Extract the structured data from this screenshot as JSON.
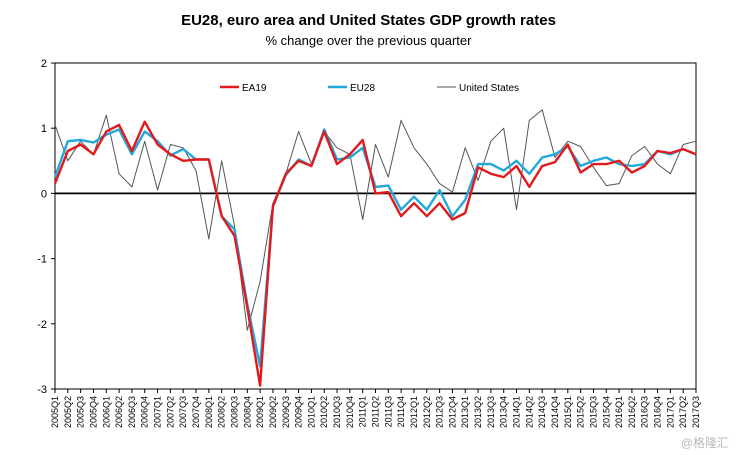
{
  "chart_data": {
    "type": "line",
    "title": "EU28, euro area and United States GDP growth rates",
    "subtitle": "% change over the previous quarter",
    "ylim": [
      -3,
      2
    ],
    "yticks": [
      2,
      1,
      0,
      -1,
      -2,
      -3
    ],
    "grid": false,
    "legend_position": "top-center",
    "categories": [
      "2005Q1",
      "2005Q2",
      "2005Q3",
      "2005Q4",
      "2006Q1",
      "2006Q2",
      "2006Q3",
      "2006Q4",
      "2007Q1",
      "2007Q2",
      "2007Q3",
      "2007Q4",
      "2008Q1",
      "2008Q2",
      "2008Q3",
      "2008Q4",
      "2009Q1",
      "2009Q2",
      "2009Q3",
      "2009Q4",
      "2010Q1",
      "2010Q2",
      "2010Q3",
      "2010Q4",
      "2011Q1",
      "2011Q2",
      "2011Q3",
      "2011Q4",
      "2012Q1",
      "2012Q2",
      "2012Q3",
      "2012Q4",
      "2013Q1",
      "2013Q2",
      "2013Q3",
      "2013Q4",
      "2014Q1",
      "2014Q2",
      "2014Q3",
      "2014Q4",
      "2015Q1",
      "2015Q2",
      "2015Q3",
      "2015Q4",
      "2016Q1",
      "2016Q2",
      "2016Q3",
      "2016Q4",
      "2017Q1",
      "2017Q2",
      "2017Q3"
    ],
    "series": [
      {
        "name": "EA19",
        "color": "#e31a1c",
        "width": 2.4,
        "values": [
          0.15,
          0.65,
          0.75,
          0.6,
          0.95,
          1.05,
          0.65,
          1.1,
          0.75,
          0.6,
          0.5,
          0.52,
          0.52,
          -0.35,
          -0.65,
          -1.75,
          -2.95,
          -0.2,
          0.3,
          0.5,
          0.42,
          0.95,
          0.45,
          0.6,
          0.82,
          0.0,
          0.02,
          -0.35,
          -0.15,
          -0.35,
          -0.15,
          -0.4,
          -0.3,
          0.4,
          0.3,
          0.25,
          0.42,
          0.1,
          0.42,
          0.48,
          0.75,
          0.32,
          0.45,
          0.45,
          0.5,
          0.32,
          0.42,
          0.65,
          0.62,
          0.68,
          0.6
        ]
      },
      {
        "name": "EU28",
        "color": "#21a9dd",
        "width": 2.4,
        "values": [
          0.25,
          0.8,
          0.82,
          0.78,
          0.9,
          0.98,
          0.6,
          0.95,
          0.8,
          0.58,
          0.68,
          0.52,
          0.52,
          -0.35,
          -0.55,
          -1.7,
          -2.65,
          -0.2,
          0.28,
          0.52,
          0.42,
          0.98,
          0.52,
          0.55,
          0.7,
          0.1,
          0.12,
          -0.25,
          -0.05,
          -0.25,
          0.05,
          -0.35,
          -0.1,
          0.45,
          0.45,
          0.35,
          0.5,
          0.3,
          0.55,
          0.6,
          0.72,
          0.42,
          0.5,
          0.55,
          0.45,
          0.42,
          0.45,
          0.65,
          0.6,
          0.68,
          0.6
        ]
      },
      {
        "name": "United States",
        "color": "#555555",
        "width": 1,
        "values": [
          1.05,
          0.5,
          0.8,
          0.6,
          1.2,
          0.3,
          0.1,
          0.8,
          0.05,
          0.75,
          0.7,
          0.35,
          -0.7,
          0.5,
          -0.5,
          -2.1,
          -1.35,
          -0.15,
          0.3,
          0.95,
          0.45,
          0.95,
          0.7,
          0.6,
          -0.4,
          0.75,
          0.25,
          1.12,
          0.7,
          0.45,
          0.15,
          0.02,
          0.7,
          0.2,
          0.8,
          1.0,
          -0.25,
          1.12,
          1.28,
          0.55,
          0.8,
          0.72,
          0.4,
          0.12,
          0.15,
          0.58,
          0.72,
          0.45,
          0.3,
          0.75,
          0.8
        ]
      }
    ]
  }
}
